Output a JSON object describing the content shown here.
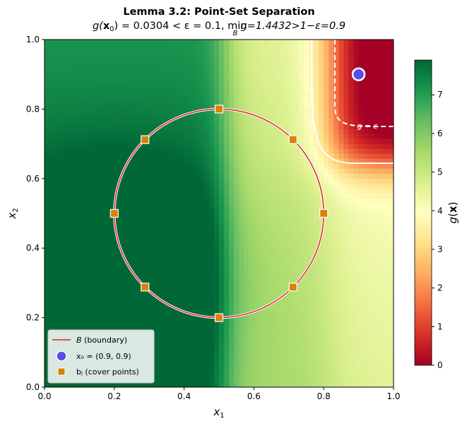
{
  "chart_data": {
    "type": "heatmap",
    "title": "Lemma 3.2: Point-Set Separation",
    "subtitle": "g(x₀) = 0.0304 < ε = 0.1, min g=1.4432>1−ε=0.9",
    "subtitle_parts": {
      "lhs": "g(",
      "x0": "x",
      "x0_sub": "0",
      "eq": ") = 0.0304 < ε = 0.1, ",
      "min": "min",
      "min_sub": "B",
      "rhs": "g=1.4432>1−ε=0.9"
    },
    "xlabel": "x",
    "xlabel_sub": "1",
    "ylabel": "x",
    "ylabel_sub": "2",
    "xlim": [
      0.0,
      1.0
    ],
    "ylim": [
      0.0,
      1.0
    ],
    "x_ticks": [
      "0.0",
      "0.2",
      "0.4",
      "0.6",
      "0.8",
      "1.0"
    ],
    "y_ticks": [
      "0.0",
      "0.2",
      "0.4",
      "0.6",
      "0.8",
      "1.0"
    ],
    "colorbar": {
      "label": "g(x)",
      "min": 0,
      "max": 7.9,
      "ticks": [
        "0",
        "1",
        "2",
        "3",
        "4",
        "5",
        "6",
        "7"
      ],
      "colormap": "RdYlGn"
    },
    "boundary": {
      "name": "B (boundary)",
      "center": [
        0.5,
        0.5
      ],
      "radius": 0.3,
      "color": "#e0202a"
    },
    "x0": {
      "name": "x₀ = (0.9, 0.9)",
      "x": 0.9,
      "y": 0.9,
      "color": "#5b4ee8"
    },
    "cover_points": {
      "name": "bⱼ (cover points)",
      "color": "#d98209",
      "points": [
        [
          0.8,
          0.5
        ],
        [
          0.7121,
          0.7121
        ],
        [
          0.5,
          0.8
        ],
        [
          0.2879,
          0.7121
        ],
        [
          0.2,
          0.5
        ],
        [
          0.2879,
          0.2879
        ],
        [
          0.5,
          0.2
        ],
        [
          0.7121,
          0.2879
        ]
      ]
    },
    "contours": [
      {
        "label": "g = 1 − ε",
        "style": "solid"
      },
      {
        "label": "g = ε",
        "style": "dashed"
      }
    ],
    "legend_placement": "lower-left",
    "legend": [
      {
        "label": "B (boundary)",
        "marker": "line"
      },
      {
        "label": "x₀ = (0.9, 0.9)",
        "marker": "circle"
      },
      {
        "label": "bⱼ (cover points)",
        "marker": "square"
      }
    ],
    "grid": false
  }
}
